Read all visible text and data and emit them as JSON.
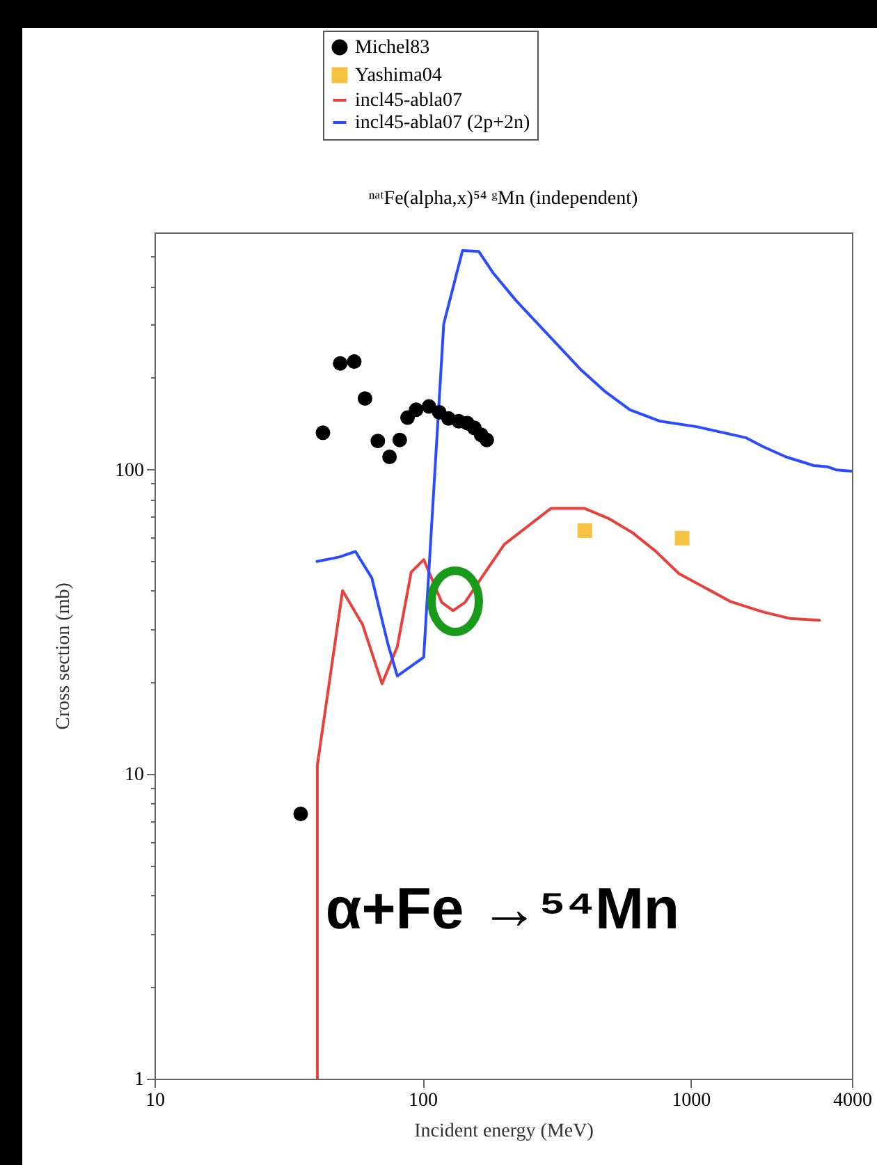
{
  "chart_data": {
    "type": "line",
    "title": "ⁿᵃᵗFe(alpha,x)⁵⁴ ᵍMn (independent)",
    "xlabel": "Incident energy (MeV)",
    "ylabel": "Cross section (mb)",
    "log": "xy",
    "xlim": [
      10,
      4000
    ],
    "ylim": [
      1,
      600
    ],
    "xticks": [
      10,
      100,
      1000,
      4000
    ],
    "yticks": [
      1,
      {
        "value": 2,
        "label": null
      },
      {
        "value": 3,
        "label": null
      },
      {
        "value": 4,
        "label": null
      },
      {
        "value": 5,
        "label": null
      },
      {
        "value": 6,
        "label": null
      },
      {
        "value": 7,
        "label": null
      },
      {
        "value": 8,
        "label": null
      },
      {
        "value": 9,
        "label": null
      },
      10,
      {
        "value": 20,
        "label": null
      },
      {
        "value": 30,
        "label": null
      },
      {
        "value": 40,
        "label": null
      },
      {
        "value": 50,
        "label": null
      },
      {
        "value": 60,
        "label": null
      },
      {
        "value": 70,
        "label": null
      },
      {
        "value": 80,
        "label": null
      },
      {
        "value": 90,
        "label": null
      },
      100,
      {
        "value": 200,
        "label": null
      },
      {
        "value": 300,
        "label": null
      },
      {
        "value": 400,
        "label": null
      },
      {
        "value": 500,
        "label": null
      }
    ],
    "legend": "top",
    "grid": false,
    "annotations": [
      "α+Fe →⁵⁴Mn"
    ],
    "series": [
      {
        "name": "Michel83",
        "type": "scatter",
        "marker": "circle",
        "color": "#000000",
        "x": [
          35.1,
          42.5,
          49.3,
          55.6,
          61,
          68.1,
          75.3,
          82.2,
          87.9,
          94.6,
          105.7,
          115.5,
          125,
          136.5,
          146.8,
          155.9,
          165.4,
          173.6
        ],
        "values": [
          7.4,
          132,
          223,
          226,
          171,
          124,
          110,
          125,
          148,
          157,
          161,
          154,
          147,
          144,
          142,
          137,
          130,
          125
        ]
      },
      {
        "name": "Yashima04",
        "type": "scatter",
        "marker": "square",
        "color": "#f5c242",
        "x": [
          403,
          930
        ],
        "values": [
          63,
          59.5
        ]
      },
      {
        "name": "incl45-abla07",
        "color": "#e8413b",
        "x": [
          40.5,
          40.5,
          50.3,
          59.7,
          70.6,
          80.5,
          90.7,
          101,
          118,
          130,
          144,
          169,
          202,
          301,
          403,
          497,
          606,
          741,
          905,
          1105,
          1403,
          1857,
          2360,
          3027
        ],
        "values": [
          1,
          10.7,
          40,
          31,
          19.8,
          26.2,
          46,
          50.6,
          36.6,
          34.4,
          36.6,
          45.2,
          56.8,
          74.5,
          74.5,
          68.9,
          62.1,
          53.9,
          45.5,
          41.4,
          36.9,
          34.1,
          32.4,
          32
        ]
      },
      {
        "name": "incl45-abla07 (2p+2n)",
        "color": "#2b4bff",
        "x": [
          40.4,
          48.9,
          56.2,
          64.7,
          74.3,
          80.5,
          101,
          120,
          141,
          162,
          183,
          223,
          295,
          391,
          477,
          594,
          771,
          1062,
          1615,
          1857,
          2270,
          2884,
          3251,
          3493,
          4000
        ],
        "values": [
          49.9,
          51.6,
          53.8,
          44,
          26.7,
          21,
          24.2,
          301,
          523,
          520,
          443,
          359,
          276,
          212,
          181,
          157,
          144,
          138,
          127,
          119,
          110,
          103,
          102,
          99.7,
          98.7
        ]
      }
    ]
  }
}
